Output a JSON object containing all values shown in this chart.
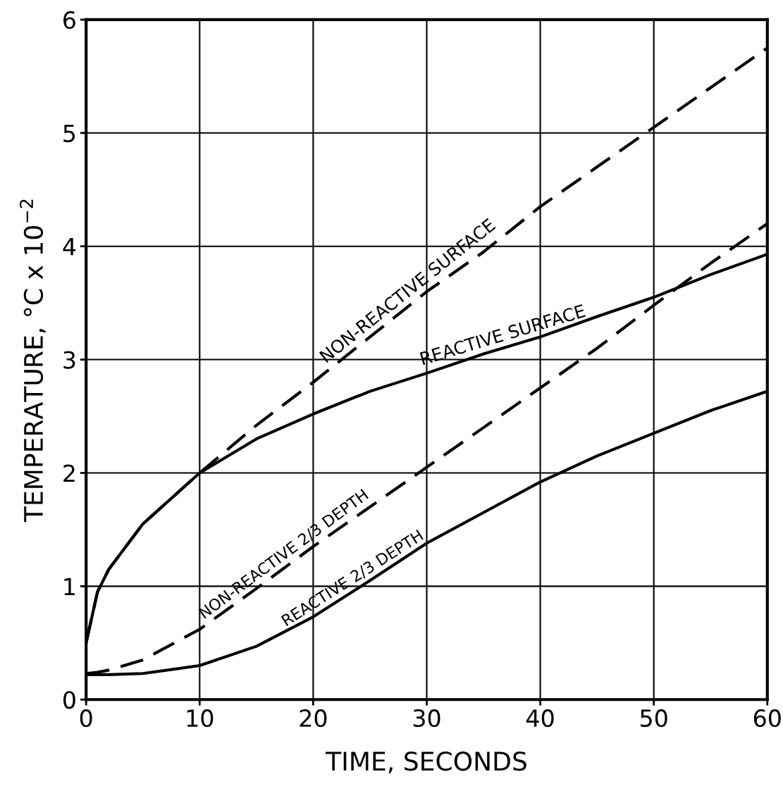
{
  "chart_data": {
    "type": "line",
    "xlabel": "TIME, SECONDS",
    "ylabel": "TEMPERATURE, °C x 10$^{−2}$",
    "x": [
      0,
      1,
      2,
      5,
      10,
      15,
      20,
      25,
      30,
      35,
      40,
      45,
      50,
      55,
      60
    ],
    "series": [
      {
        "name": "NON-REACTIVE SURFACE",
        "color": "#000000",
        "line_style": "dashed",
        "values": [
          0.5,
          0.95,
          1.15,
          1.55,
          2.0,
          2.42,
          2.8,
          3.2,
          3.6,
          3.95,
          4.35,
          4.7,
          5.05,
          5.4,
          5.75
        ]
      },
      {
        "name": "REACTIVE SURFACE",
        "color": "#000000",
        "line_style": "solid",
        "values": [
          0.5,
          0.95,
          1.15,
          1.55,
          2.0,
          2.3,
          2.52,
          2.72,
          2.88,
          3.05,
          3.2,
          3.38,
          3.55,
          3.75,
          3.93
        ]
      },
      {
        "name": "NON-REACTIVE 2/3 DEPTH",
        "color": "#000000",
        "line_style": "dashed",
        "values": [
          0.23,
          0.24,
          0.26,
          0.35,
          0.62,
          0.98,
          1.35,
          1.7,
          2.05,
          2.4,
          2.75,
          3.1,
          3.48,
          3.85,
          4.2
        ]
      },
      {
        "name": "REACTIVE 2/3 DEPTH",
        "color": "#000000",
        "line_style": "solid",
        "values": [
          0.22,
          0.22,
          0.22,
          0.23,
          0.3,
          0.47,
          0.73,
          1.05,
          1.38,
          1.65,
          1.92,
          2.15,
          2.35,
          2.55,
          2.72
        ]
      }
    ],
    "xlim": [
      0,
      60
    ],
    "ylim": [
      0,
      6
    ],
    "xticks": [
      0,
      10,
      20,
      30,
      40,
      50,
      60
    ],
    "yticks": [
      0,
      1,
      2,
      3,
      4,
      5,
      6
    ],
    "grid": true,
    "legend": false,
    "marker": "none"
  }
}
